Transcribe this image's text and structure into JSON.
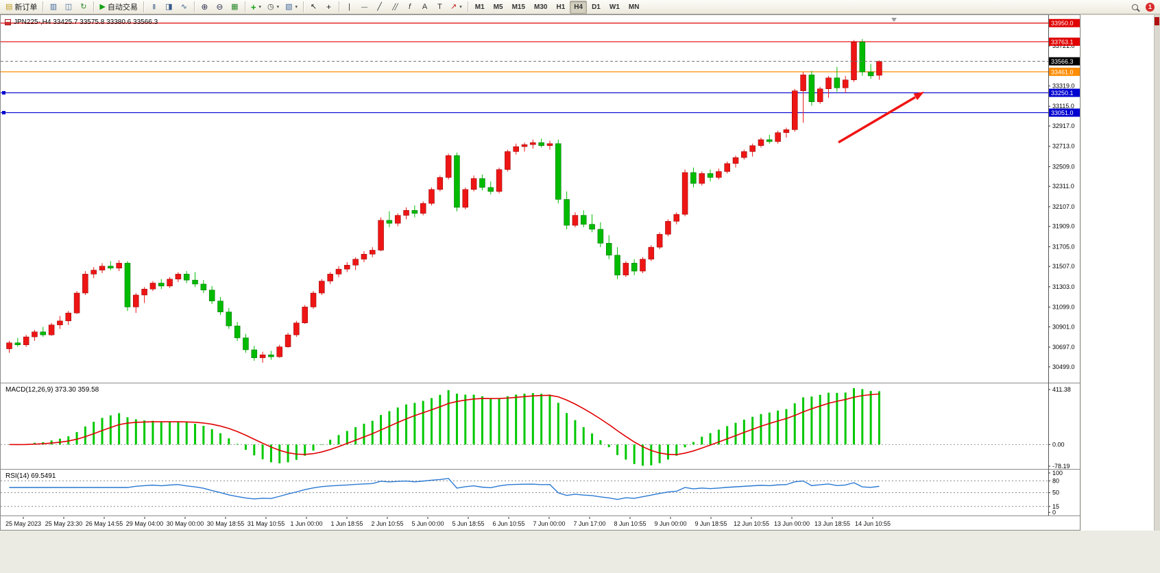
{
  "toolbar": {
    "groups": [
      {
        "items": [
          {
            "name": "new-order-button",
            "icon": "order-ticket-icon",
            "label": "新订单"
          }
        ]
      },
      {
        "items": [
          {
            "name": "new-chart-button",
            "icon": "new-chart-icon"
          },
          {
            "name": "profiles-button",
            "icon": "profiles-icon"
          },
          {
            "name": "refresh-button",
            "icon": "refresh-icon"
          }
        ]
      },
      {
        "items": [
          {
            "name": "autotrade-button",
            "icon": "autotrade-play-icon",
            "label": "自动交易"
          }
        ]
      },
      {
        "items": [
          {
            "name": "bar-chart-button",
            "icon": "bar-chart-icon"
          },
          {
            "name": "candlestick-chart-button",
            "icon": "candlestick-icon"
          },
          {
            "name": "line-chart-button",
            "icon": "line-chart-icon"
          }
        ]
      },
      {
        "items": [
          {
            "name": "zoom-in-button",
            "icon": "zoom-in-icon"
          },
          {
            "name": "zoom-out-button",
            "icon": "zoom-out-icon"
          },
          {
            "name": "tile-windows-button",
            "icon": "tile-windows-icon"
          }
        ]
      },
      {
        "items": [
          {
            "name": "indicators-button",
            "icon": "indicators-icon",
            "dropdown": true
          },
          {
            "name": "periods-button",
            "icon": "clock-icon",
            "dropdown": true
          },
          {
            "name": "templates-button",
            "icon": "template-icon",
            "dropdown": true
          }
        ]
      },
      {
        "items": [
          {
            "name": "cursor-button",
            "icon": "cursor-icon"
          },
          {
            "name": "crosshair-button",
            "icon": "crosshair-icon"
          }
        ]
      },
      {
        "items": [
          {
            "name": "vertical-line-button",
            "icon": "vertical-line-icon"
          },
          {
            "name": "horizontal-line-button",
            "icon": "horizontal-line-icon"
          },
          {
            "name": "trendline-button",
            "icon": "trendline-icon"
          },
          {
            "name": "channel-button",
            "icon": "channel-icon"
          },
          {
            "name": "fibonacci-button",
            "icon": "fibonacci-icon"
          },
          {
            "name": "text-button",
            "icon": "text-icon"
          },
          {
            "name": "label-button",
            "icon": "label-icon"
          },
          {
            "name": "arrows-button",
            "icon": "arrow-icon",
            "dropdown": true
          }
        ]
      }
    ],
    "timeframes": [
      "M1",
      "M5",
      "M15",
      "M30",
      "H1",
      "H4",
      "D1",
      "W1",
      "MN"
    ],
    "active_timeframe": "H4",
    "right_items": [
      {
        "name": "search-button",
        "icon": "magnifier-icon"
      },
      {
        "name": "notifications-button",
        "icon": "notification-badge-icon",
        "badge": "1"
      }
    ]
  },
  "chart_header": {
    "title": "JPN225-,H4 33425.7 33575.8 33380.6 33566.3",
    "symbol": "JPN225-",
    "period": "H4"
  },
  "chart_data": {
    "type": "candlestick",
    "symbol": "JPN225-",
    "timeframe": "H4",
    "last_ohlc": {
      "open": 33425.7,
      "high": 33575.8,
      "low": 33380.6,
      "close": 33566.3
    },
    "up_color": "#ee1515",
    "down_color": "#00bb00",
    "price_axis_ticks": [
      "33721.0",
      "33319.0",
      "33115.0",
      "32917.0",
      "32713.0",
      "32509.0",
      "32311.0",
      "32107.0",
      "31909.0",
      "31705.0",
      "31507.0",
      "31303.0",
      "31099.0",
      "30901.0",
      "30697.0",
      "30499.0"
    ],
    "horizontal_lines": [
      {
        "price": 33950.0,
        "label": "33950.0",
        "color": "#e00000",
        "handles": false
      },
      {
        "price": 33763.1,
        "label": "33763.1",
        "color": "#e00000",
        "handles": false
      },
      {
        "price": 33461.0,
        "label": "33461.0",
        "color": "#ff8c00",
        "handles": false
      },
      {
        "price": 33250.1,
        "label": "33250.1",
        "color": "#0000d0",
        "handles": true
      },
      {
        "price": 33051.0,
        "label": "33051.0",
        "color": "#0000d0",
        "handles": true
      }
    ],
    "current_price": {
      "value": 33566.3,
      "label": "33566.3"
    },
    "candles_ohlc": [
      [
        30680,
        30760,
        30640,
        30740
      ],
      [
        30740,
        30790,
        30700,
        30720
      ],
      [
        30720,
        30820,
        30700,
        30800
      ],
      [
        30800,
        30870,
        30760,
        30850
      ],
      [
        30850,
        30900,
        30800,
        30820
      ],
      [
        30820,
        30940,
        30810,
        30920
      ],
      [
        30920,
        31010,
        30880,
        30960
      ],
      [
        30960,
        31060,
        30920,
        31040
      ],
      [
        31040,
        31260,
        31030,
        31240
      ],
      [
        31240,
        31460,
        31220,
        31430
      ],
      [
        31430,
        31500,
        31390,
        31470
      ],
      [
        31470,
        31540,
        31440,
        31510
      ],
      [
        31510,
        31560,
        31470,
        31490
      ],
      [
        31490,
        31570,
        31460,
        31540
      ],
      [
        31540,
        31560,
        31060,
        31100
      ],
      [
        31100,
        31240,
        31040,
        31220
      ],
      [
        31220,
        31300,
        31140,
        31280
      ],
      [
        31280,
        31360,
        31260,
        31340
      ],
      [
        31340,
        31380,
        31280,
        31310
      ],
      [
        31310,
        31400,
        31290,
        31380
      ],
      [
        31380,
        31450,
        31350,
        31430
      ],
      [
        31430,
        31460,
        31340,
        31370
      ],
      [
        31370,
        31450,
        31300,
        31330
      ],
      [
        31330,
        31370,
        31240,
        31270
      ],
      [
        31270,
        31310,
        31130,
        31160
      ],
      [
        31160,
        31200,
        31020,
        31050
      ],
      [
        31050,
        31090,
        30880,
        30910
      ],
      [
        30910,
        30950,
        30760,
        30790
      ],
      [
        30790,
        30830,
        30640,
        30670
      ],
      [
        30670,
        30710,
        30560,
        30590
      ],
      [
        30590,
        30650,
        30540,
        30620
      ],
      [
        30620,
        30660,
        30570,
        30600
      ],
      [
        30600,
        30720,
        30590,
        30700
      ],
      [
        30700,
        30840,
        30690,
        30820
      ],
      [
        30820,
        30960,
        30800,
        30940
      ],
      [
        30940,
        31120,
        30930,
        31100
      ],
      [
        31100,
        31260,
        31080,
        31240
      ],
      [
        31240,
        31380,
        31220,
        31360
      ],
      [
        31360,
        31450,
        31330,
        31430
      ],
      [
        31430,
        31510,
        31400,
        31480
      ],
      [
        31480,
        31550,
        31450,
        31520
      ],
      [
        31520,
        31600,
        31470,
        31580
      ],
      [
        31580,
        31660,
        31550,
        31630
      ],
      [
        31630,
        31700,
        31600,
        31670
      ],
      [
        31670,
        32000,
        31660,
        31970
      ],
      [
        31970,
        32060,
        31900,
        31940
      ],
      [
        31940,
        32040,
        31910,
        32020
      ],
      [
        32020,
        32100,
        31980,
        32070
      ],
      [
        32070,
        32120,
        32000,
        32040
      ],
      [
        32040,
        32160,
        32020,
        32140
      ],
      [
        32140,
        32300,
        32120,
        32280
      ],
      [
        32280,
        32420,
        32260,
        32400
      ],
      [
        32400,
        32640,
        32380,
        32620
      ],
      [
        32620,
        32650,
        32060,
        32100
      ],
      [
        32100,
        32300,
        32080,
        32280
      ],
      [
        32280,
        32420,
        32260,
        32390
      ],
      [
        32390,
        32430,
        32270,
        32300
      ],
      [
        32300,
        32360,
        32230,
        32260
      ],
      [
        32260,
        32500,
        32240,
        32480
      ],
      [
        32480,
        32680,
        32460,
        32660
      ],
      [
        32660,
        32740,
        32630,
        32710
      ],
      [
        32710,
        32750,
        32660,
        32730
      ],
      [
        32730,
        32780,
        32690,
        32750
      ],
      [
        32750,
        32790,
        32700,
        32720
      ],
      [
        32720,
        32770,
        32680,
        32740
      ],
      [
        32740,
        32780,
        32140,
        32180
      ],
      [
        32180,
        32260,
        31880,
        31920
      ],
      [
        31920,
        32050,
        31900,
        32020
      ],
      [
        32020,
        32070,
        31900,
        31930
      ],
      [
        31930,
        32030,
        31850,
        31880
      ],
      [
        31880,
        31950,
        31700,
        31740
      ],
      [
        31740,
        31820,
        31580,
        31620
      ],
      [
        31620,
        31700,
        31380,
        31420
      ],
      [
        31420,
        31560,
        31400,
        31540
      ],
      [
        31540,
        31580,
        31420,
        31460
      ],
      [
        31460,
        31600,
        31440,
        31580
      ],
      [
        31580,
        31720,
        31560,
        31700
      ],
      [
        31700,
        31850,
        31680,
        31830
      ],
      [
        31830,
        31980,
        31810,
        31960
      ],
      [
        31960,
        32050,
        31930,
        32030
      ],
      [
        32030,
        32480,
        32010,
        32450
      ],
      [
        32450,
        32500,
        32300,
        32340
      ],
      [
        32340,
        32460,
        32320,
        32440
      ],
      [
        32440,
        32480,
        32360,
        32400
      ],
      [
        32400,
        32490,
        32380,
        32460
      ],
      [
        32460,
        32560,
        32440,
        32540
      ],
      [
        32540,
        32620,
        32500,
        32600
      ],
      [
        32600,
        32680,
        32580,
        32660
      ],
      [
        32660,
        32740,
        32610,
        32720
      ],
      [
        32720,
        32800,
        32700,
        32780
      ],
      [
        32780,
        32830,
        32740,
        32760
      ],
      [
        32760,
        32870,
        32740,
        32850
      ],
      [
        32850,
        32900,
        32800,
        32880
      ],
      [
        32880,
        33290,
        32860,
        33270
      ],
      [
        33270,
        33460,
        32950,
        33430
      ],
      [
        33430,
        33470,
        33120,
        33160
      ],
      [
        33160,
        33310,
        33140,
        33290
      ],
      [
        33290,
        33420,
        33200,
        33400
      ],
      [
        33400,
        33510,
        33260,
        33300
      ],
      [
        33300,
        33420,
        33250,
        33380
      ],
      [
        33380,
        33780,
        33360,
        33760
      ],
      [
        33760,
        33790,
        33420,
        33460
      ],
      [
        33460,
        33540,
        33390,
        33420
      ],
      [
        33425.7,
        33575.8,
        33380.6,
        33566.3
      ]
    ],
    "time_labels": [
      "25 May 2023",
      "25 May 23:30",
      "26 May 14:55",
      "29 May 04:00",
      "30 May 00:00",
      "30 May 18:55",
      "31 May 10:55",
      "1 Jun 00:00",
      "1 Jun 18:55",
      "2 Jun 10:55",
      "5 Jun 00:00",
      "5 Jun 18:55",
      "6 Jun 10:55",
      "7 Jun 00:00",
      "7 Jun 17:00",
      "8 Jun 10:55",
      "9 Jun 00:00",
      "9 Jun 18:55",
      "12 Jun 10:55",
      "13 Jun 00:00",
      "13 Jun 18:55",
      "14 Jun 10:55"
    ],
    "macd": {
      "label": "MACD(12,26,9) 373.30 359.58",
      "fast": 12,
      "slow": 26,
      "signal_period": 9,
      "current_macd": 373.3,
      "current_signal": 359.58,
      "axis_labels": [
        "411.38",
        "0.00",
        "-78.19"
      ],
      "histogram_color": "#00c800",
      "signal_color": "#e00000"
    },
    "rsi": {
      "label": "RSI(14) 69.5491",
      "period": 14,
      "current": 69.5491,
      "axis_labels": [
        "100",
        "80",
        "50",
        "15",
        "0"
      ],
      "levels": [
        80,
        50,
        15
      ],
      "line_color": "#2878d2"
    },
    "annotation_arrow": {
      "color": "#f01414"
    }
  }
}
